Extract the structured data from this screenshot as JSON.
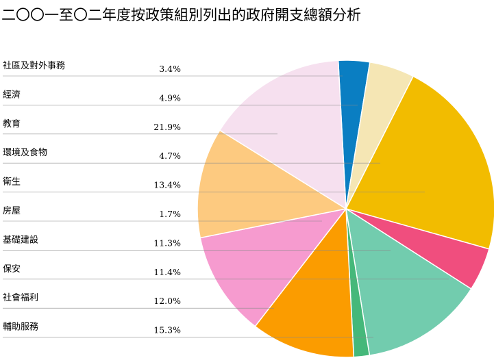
{
  "chart_data": {
    "type": "pie",
    "title": "二〇〇一至〇二年度按政策組別列出的政府開支總額分析",
    "categories": [
      "社區及對外事務",
      "經濟",
      "教育",
      "環境及食物",
      "衛生",
      "房屋",
      "基礎建設",
      "保安",
      "社會福利",
      "輔助服務"
    ],
    "labels": [
      "3.4%",
      "4.9%",
      "21.9%",
      "4.7%",
      "13.4%",
      "1.7%",
      "11.3%",
      "11.4%",
      "12.0%",
      "15.3%"
    ],
    "values": [
      3.4,
      4.9,
      21.9,
      4.7,
      13.4,
      1.7,
      11.3,
      11.4,
      12.0,
      15.3
    ],
    "colors": [
      "#0a7ec2",
      "#f5e6b4",
      "#f2bc00",
      "#f04e7e",
      "#72ccae",
      "#45b87a",
      "#fb9c00",
      "#f69bcf",
      "#fdca80",
      "#f6e0ef"
    ],
    "legend": "left"
  }
}
